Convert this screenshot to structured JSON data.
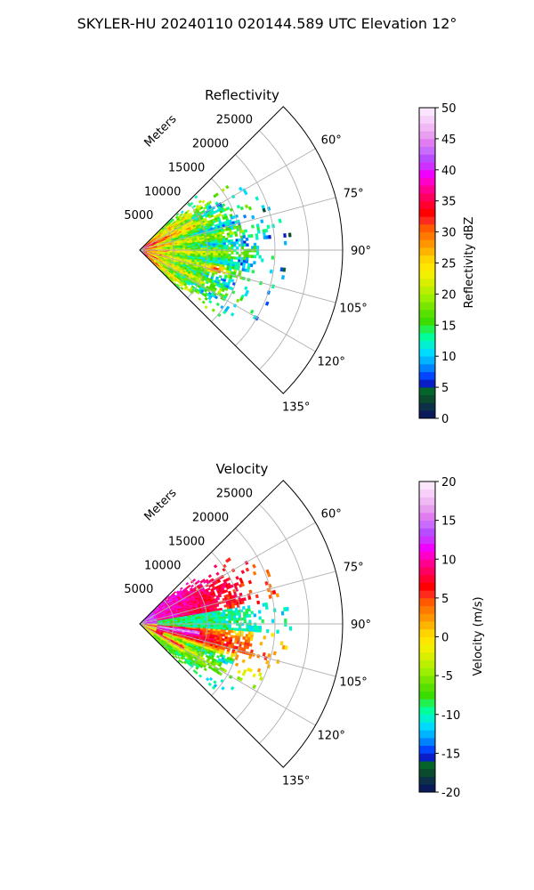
{
  "figure": {
    "title": "SKYLER-HU  20240110  020144.589 UTC Elevation 12°"
  },
  "chart_data": [
    {
      "type": "heatmap",
      "subtype": "polar-sector (PPI)",
      "title": "Reflectivity",
      "range_label": "Meters",
      "range_ticks": [
        5000,
        10000,
        15000,
        20000,
        25000
      ],
      "range_lim": [
        0,
        30000
      ],
      "azimuth_ticks_deg": [
        60,
        75,
        90,
        105,
        120,
        135
      ],
      "azimuth_labels": [
        "60°",
        "75°",
        "90°",
        "105°",
        "120°",
        "135°"
      ],
      "azimuth_lim_deg": [
        45,
        135
      ],
      "grid": true,
      "colorbar": {
        "label": "Reflectivity dBZ",
        "min": 0,
        "max": 50,
        "ticks": [
          0,
          5,
          10,
          15,
          20,
          25,
          30,
          35,
          40,
          45,
          50
        ],
        "colors": [
          "#0a1a5a",
          "#0b3048",
          "#0a4a2e",
          "#04642a",
          "#0a1ec8",
          "#0046ff",
          "#0082ff",
          "#00b4ff",
          "#00dcff",
          "#00f0d0",
          "#00ff9a",
          "#22f050",
          "#3cdc00",
          "#58e000",
          "#7ae600",
          "#9af000",
          "#baf000",
          "#d8f000",
          "#f0f000",
          "#ffe600",
          "#ffd400",
          "#ffb400",
          "#ff9600",
          "#ff7800",
          "#ff5a00",
          "#ff2a1e",
          "#ff0000",
          "#ff0030",
          "#ff0060",
          "#ff0090",
          "#ff00c8",
          "#f000ff",
          "#d030ff",
          "#b84cff",
          "#c86cff",
          "#e07cf0",
          "#e89ef0",
          "#f0b8f4",
          "#f6d0f8",
          "#fae6fc"
        ]
      },
      "description_of_field": "Wedge of returns 45°–135° azimuth, strongest (red/orange 30–40 dBZ) near radar and along ~100° radial, mostly yellow/green 15–28 dBZ, speckled green edges out to ~20 km"
    },
    {
      "type": "heatmap",
      "subtype": "polar-sector (PPI)",
      "title": "Velocity",
      "range_label": "Meters",
      "range_ticks": [
        5000,
        10000,
        15000,
        20000,
        25000
      ],
      "range_lim": [
        0,
        30000
      ],
      "azimuth_ticks_deg": [
        60,
        75,
        90,
        105,
        120,
        135
      ],
      "azimuth_labels": [
        "60°",
        "75°",
        "90°",
        "105°",
        "120°",
        "135°"
      ],
      "azimuth_lim_deg": [
        45,
        135
      ],
      "grid": true,
      "colorbar": {
        "label": "Velocity (m/s)",
        "min": -20,
        "max": 20,
        "ticks": [
          -20,
          -15,
          -10,
          -5,
          0,
          5,
          10,
          15,
          20
        ],
        "colors": [
          "#0a1a5a",
          "#0b3048",
          "#0a4a2e",
          "#04642a",
          "#0a1ec8",
          "#0046ff",
          "#0082ff",
          "#00b4ff",
          "#00dcff",
          "#00f0d0",
          "#00ff9a",
          "#22f050",
          "#3cdc00",
          "#58e000",
          "#7ae600",
          "#9af000",
          "#baf000",
          "#d8f000",
          "#f0f000",
          "#ffe600",
          "#ffd400",
          "#ffb400",
          "#ff9600",
          "#ff7800",
          "#ff5a00",
          "#ff2a1e",
          "#ff0000",
          "#ff0030",
          "#ff0060",
          "#ff0090",
          "#ff00c8",
          "#f000ff",
          "#d030ff",
          "#b84cff",
          "#c86cff",
          "#e07cf0",
          "#e89ef0",
          "#f0b8f4",
          "#f6d0f8",
          "#fae6fc"
        ]
      },
      "description_of_field": "Bands of red/magenta (+10 to +15 m/s) near radar and to the north-east, cyan/green (-12 to -5 m/s) around 90°, yellow/orange mid-range along 100–110°"
    }
  ]
}
